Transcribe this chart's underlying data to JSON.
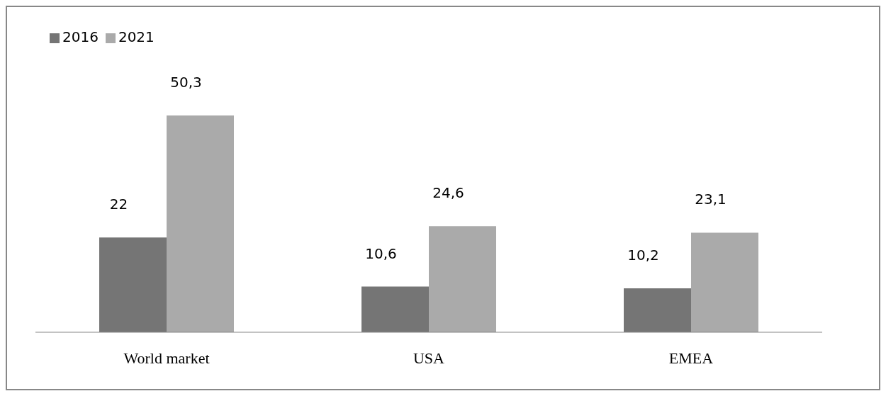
{
  "chart_data": {
    "type": "bar",
    "categories": [
      "World market",
      "USA",
      "EMEA"
    ],
    "series": [
      {
        "name": "2016",
        "color": "#757575",
        "values": [
          22,
          10.6,
          10.2
        ],
        "value_labels": [
          "22",
          "10,6",
          "10,2"
        ]
      },
      {
        "name": "2021",
        "color": "#aaaaaa",
        "values": [
          50.3,
          24.6,
          23.1
        ],
        "value_labels": [
          "50,3",
          "24,6",
          "23,1"
        ]
      }
    ],
    "legend": "top left",
    "grid": false
  }
}
